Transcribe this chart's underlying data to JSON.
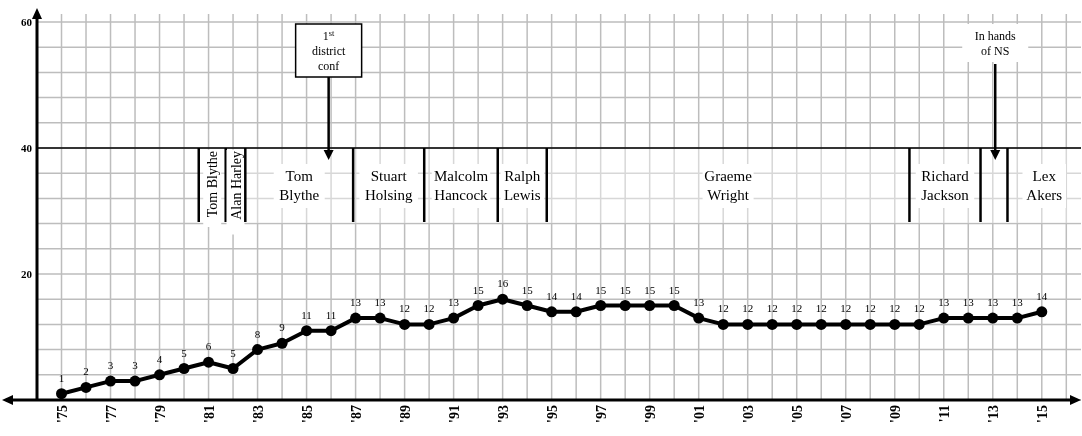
{
  "chart_data": {
    "type": "line",
    "x": [
      1975,
      1976,
      1977,
      1978,
      1979,
      1980,
      1981,
      1982,
      1983,
      1984,
      1985,
      1986,
      1987,
      1988,
      1989,
      1990,
      1991,
      1992,
      1993,
      1994,
      1995,
      1996,
      1997,
      1998,
      1999,
      2000,
      2001,
      2002,
      2003,
      2004,
      2005,
      2006,
      2007,
      2008,
      2009,
      2010,
      2011,
      2012,
      2013,
      2014,
      2015
    ],
    "series": [
      {
        "color": "#000000",
        "values": [
          1,
          2,
          3,
          3,
          4,
          5,
          6,
          5,
          8,
          9,
          11,
          11,
          13,
          13,
          12,
          12,
          13,
          15,
          16,
          15,
          14,
          14,
          15,
          15,
          15,
          15,
          13,
          12,
          12,
          12,
          12,
          12,
          12,
          12,
          12,
          12,
          13,
          13,
          13,
          13,
          14
        ]
      }
    ],
    "data_labels": true,
    "marker": "circle",
    "line_style": "solid",
    "grid": true,
    "xlim": [
      1974,
      2016.6
    ],
    "ylim": [
      0,
      60
    ],
    "xticks": [
      {
        "value": 1975,
        "label": "'75"
      },
      {
        "value": 1976,
        "label": null
      },
      {
        "value": 1977,
        "label": "'77"
      },
      {
        "value": 1978,
        "label": null
      },
      {
        "value": 1979,
        "label": "'79"
      },
      {
        "value": 1980,
        "label": null
      },
      {
        "value": 1981,
        "label": "'81"
      },
      {
        "value": 1982,
        "label": null
      },
      {
        "value": 1983,
        "label": "'83"
      },
      {
        "value": 1984,
        "label": null
      },
      {
        "value": 1985,
        "label": "'85"
      },
      {
        "value": 1986,
        "label": null
      },
      {
        "value": 1987,
        "label": "'87"
      },
      {
        "value": 1988,
        "label": null
      },
      {
        "value": 1989,
        "label": "'89"
      },
      {
        "value": 1990,
        "label": null
      },
      {
        "value": 1991,
        "label": "'91"
      },
      {
        "value": 1992,
        "label": null
      },
      {
        "value": 1993,
        "label": "'93"
      },
      {
        "value": 1994,
        "label": null
      },
      {
        "value": 1995,
        "label": "'95"
      },
      {
        "value": 1996,
        "label": null
      },
      {
        "value": 1997,
        "label": "'97"
      },
      {
        "value": 1998,
        "label": null
      },
      {
        "value": 1999,
        "label": "'99"
      },
      {
        "value": 2000,
        "label": null
      },
      {
        "value": 2001,
        "label": "'01"
      },
      {
        "value": 2002,
        "label": null
      },
      {
        "value": 2003,
        "label": "'03"
      },
      {
        "value": 2004,
        "label": null
      },
      {
        "value": 2005,
        "label": "'05"
      },
      {
        "value": 2006,
        "label": null
      },
      {
        "value": 2007,
        "label": "'07"
      },
      {
        "value": 2008,
        "label": null
      },
      {
        "value": 2009,
        "label": "'09"
      },
      {
        "value": 2010,
        "label": null
      },
      {
        "value": 2011,
        "label": "'11"
      },
      {
        "value": 2012,
        "label": null
      },
      {
        "value": 2013,
        "label": "'13"
      },
      {
        "value": 2014,
        "label": null
      },
      {
        "value": 2015,
        "label": "'15"
      },
      {
        "value": 2016,
        "label": null
      }
    ],
    "yticks": [
      {
        "value": 0,
        "label": null
      },
      {
        "value": 4,
        "label": null
      },
      {
        "value": 8,
        "label": null
      },
      {
        "value": 12,
        "label": null
      },
      {
        "value": 16,
        "label": null
      },
      20,
      {
        "value": 24,
        "label": null
      },
      {
        "value": 28,
        "label": null
      },
      {
        "value": 32,
        "label": null
      },
      {
        "value": 36,
        "label": null
      },
      40,
      {
        "value": 44,
        "label": null
      },
      {
        "value": 48,
        "label": null
      },
      {
        "value": 52,
        "label": null
      },
      {
        "value": 56,
        "label": null
      },
      60
    ],
    "ref_lines": [
      {
        "axis": "y",
        "value": 40,
        "color": "#000000"
      }
    ],
    "bands": [
      {
        "axis": "x",
        "from": 1980.6,
        "to": 1981.7,
        "label": "Tom Blythe",
        "color": "#ffffff"
      },
      {
        "axis": "x",
        "from": 1981.7,
        "to": 1982.5,
        "label": "Alan Harley",
        "color": "#ffffff"
      },
      {
        "axis": "x",
        "from": 1982.5,
        "to": 1986.9,
        "label": "Tom Blythe",
        "color": "#ffffff"
      },
      {
        "axis": "x",
        "from": 1986.9,
        "to": 1989.8,
        "label": "Stuart Holsing",
        "color": "#ffffff"
      },
      {
        "axis": "x",
        "from": 1989.8,
        "to": 1992.8,
        "label": "Malcolm Hancock",
        "color": "#ffffff"
      },
      {
        "axis": "x",
        "from": 1992.8,
        "to": 1994.8,
        "label": "Ralph Lewis",
        "color": "#ffffff"
      },
      {
        "axis": "x",
        "from": 1994.8,
        "to": 2009.6,
        "label": "Graeme Wright",
        "color": "#ffffff"
      },
      {
        "axis": "x",
        "from": 2009.6,
        "to": 2012.5,
        "label": "Richard Jackson",
        "color": "#ffffff"
      },
      {
        "axis": "x",
        "from": 2012.5,
        "to": 2013.6,
        "color": "#ffffff"
      },
      {
        "axis": "x",
        "from": 2013.6,
        "to": 2016.6,
        "label": "Lex Akers",
        "color": "#ffffff"
      }
    ],
    "annotations": [
      {
        "text": "1$^{st}$ district conf",
        "x": 1985.9,
        "y": 40
      },
      {
        "text": "In hands of NS",
        "x": 2013.1,
        "y": 40
      }
    ]
  }
}
